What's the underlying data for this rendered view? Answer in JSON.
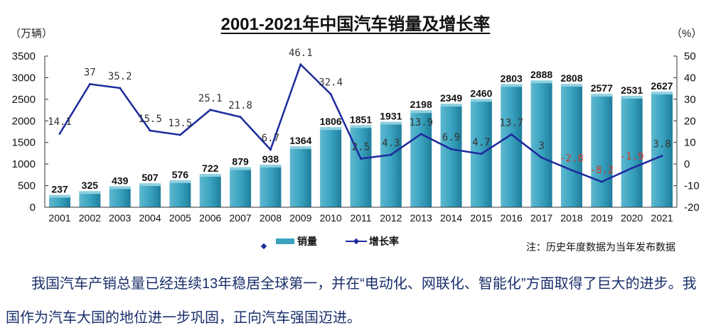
{
  "chart_data": {
    "type": "bar+line",
    "title": "2001-2021年中国汽车销量及增长率",
    "ylabel_left": "（万辆）",
    "ylabel_right": "（%）",
    "categories": [
      "2001",
      "2002",
      "2003",
      "2004",
      "2005",
      "2006",
      "2007",
      "2008",
      "2009",
      "2010",
      "2011",
      "2012",
      "2013",
      "2014",
      "2015",
      "2016",
      "2017",
      "2018",
      "2019",
      "2020",
      "2021"
    ],
    "series": [
      {
        "name": "销量",
        "type": "bar",
        "axis": "left",
        "color": "#2e95b3",
        "values": [
          237,
          325,
          439,
          507,
          576,
          722,
          879,
          938,
          1364,
          1806,
          1851,
          1931,
          2198,
          2349,
          2460,
          2803,
          2888,
          2808,
          2577,
          2531,
          2627
        ]
      },
      {
        "name": "增长率",
        "type": "line",
        "axis": "right",
        "color": "#1c2a9c",
        "values": [
          14.1,
          37,
          35.2,
          15.5,
          13.5,
          25.1,
          21.8,
          6.7,
          46.1,
          32.4,
          2.5,
          4.3,
          13.9,
          6.9,
          4.7,
          13.7,
          3,
          -2.8,
          -8.2,
          -1.9,
          3.8
        ]
      }
    ],
    "ylim_left": [
      0,
      3500
    ],
    "yticks_left": [
      0,
      500,
      1000,
      1500,
      2000,
      2500,
      3000,
      3500
    ],
    "ylim_right": [
      -20,
      50
    ],
    "yticks_right": [
      -20,
      -10,
      0,
      10,
      20,
      30,
      40,
      50
    ],
    "grid": false,
    "legend_position": "bottom",
    "negative_label_color": "#d03a2a"
  },
  "note": "注：历史年度数据为当年发布数据",
  "paragraph": "我国汽车产销总量已经连续13年稳居全球第一，并在“电动化、网联化、智能化”方面取得了巨大的进步。我国作为汽车大国的地位进一步巩固，正向汽车强国迈进。"
}
